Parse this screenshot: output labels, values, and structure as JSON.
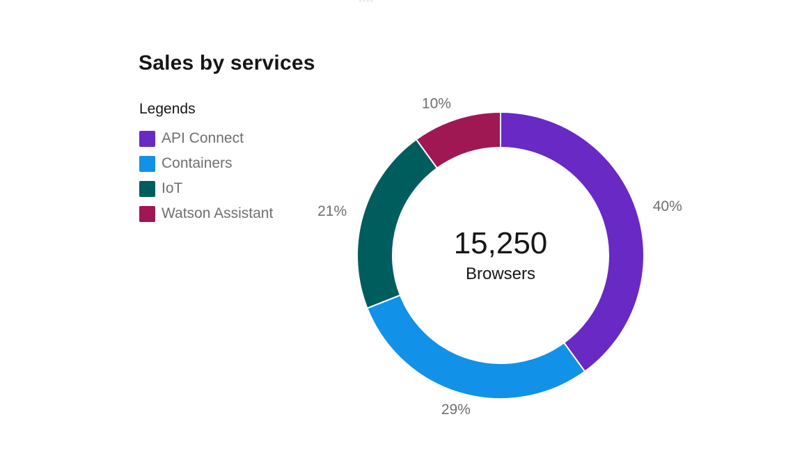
{
  "chart_data": {
    "type": "pie",
    "variant": "donut",
    "title": "Sales by services",
    "legend_heading": "Legends",
    "categories": [
      "API Connect",
      "Containers",
      "IoT",
      "Watson Assistant"
    ],
    "values": [
      40,
      29,
      21,
      10
    ],
    "labels": [
      "40%",
      "29%",
      "21%",
      "10%"
    ],
    "colors": [
      "#6929c4",
      "#1192e8",
      "#005d5d",
      "#9f1853"
    ],
    "center_value": "15,250",
    "center_label": "Browsers",
    "legend_position": "top-left"
  }
}
